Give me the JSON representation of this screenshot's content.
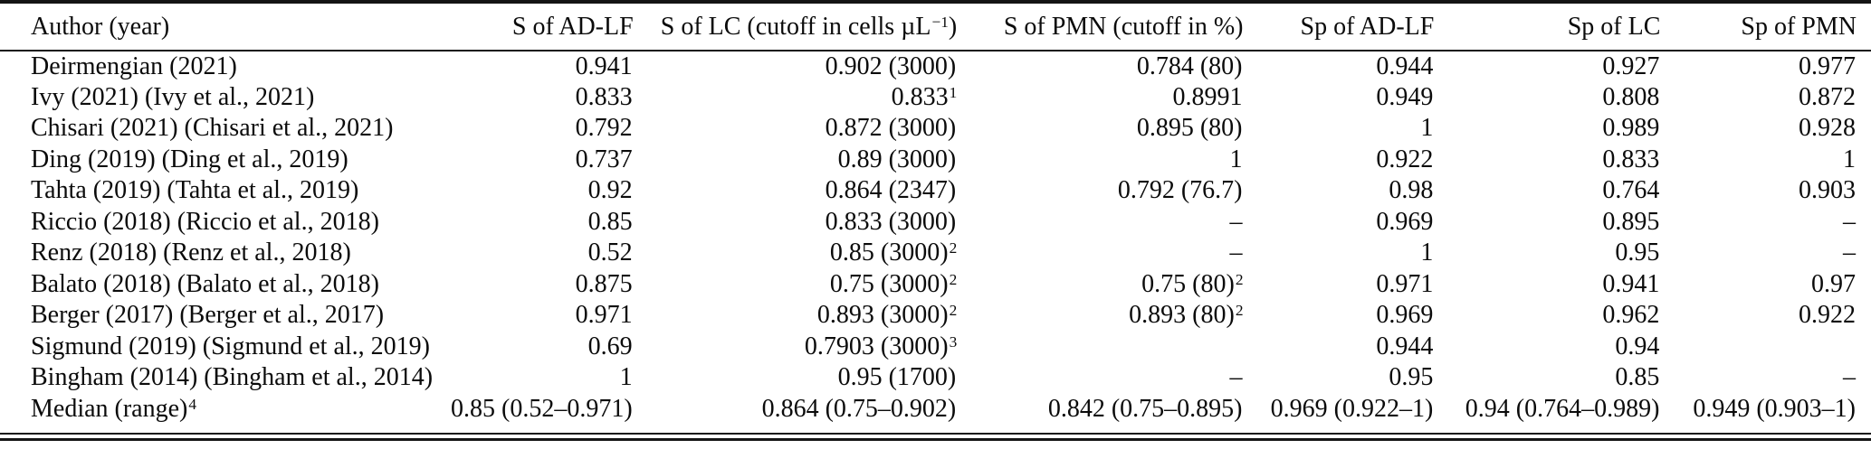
{
  "table": {
    "columns": [
      {
        "pre": "Author (year)",
        "sup": "",
        "post": ""
      },
      {
        "pre": "S of AD-LF",
        "sup": "",
        "post": ""
      },
      {
        "pre": "S of LC (cutoff in cells µL",
        "sup": "−1",
        "post": ")"
      },
      {
        "pre": "S of PMN (cutoff in %)",
        "sup": "",
        "post": ""
      },
      {
        "pre": "Sp of AD-LF",
        "sup": "",
        "post": ""
      },
      {
        "pre": "Sp of LC",
        "sup": "",
        "post": ""
      },
      {
        "pre": "Sp of PMN",
        "sup": "",
        "post": ""
      }
    ],
    "rows": [
      {
        "author": {
          "t": "Deirmengian (2021)",
          "s": ""
        },
        "c": [
          {
            "t": "0.941",
            "s": ""
          },
          {
            "t": "0.902 (3000)",
            "s": ""
          },
          {
            "t": "0.784 (80)",
            "s": ""
          },
          {
            "t": "0.944",
            "s": ""
          },
          {
            "t": "0.927",
            "s": ""
          },
          {
            "t": "0.977",
            "s": ""
          }
        ]
      },
      {
        "author": {
          "t": "Ivy (2021) (Ivy et al., 2021)",
          "s": ""
        },
        "c": [
          {
            "t": "0.833",
            "s": ""
          },
          {
            "t": "0.833",
            "s": "1"
          },
          {
            "t": "0.8991",
            "s": ""
          },
          {
            "t": "0.949",
            "s": ""
          },
          {
            "t": "0.808",
            "s": ""
          },
          {
            "t": "0.872",
            "s": ""
          }
        ]
      },
      {
        "author": {
          "t": "Chisari (2021) (Chisari et al., 2021)",
          "s": ""
        },
        "c": [
          {
            "t": "0.792",
            "s": ""
          },
          {
            "t": "0.872 (3000)",
            "s": ""
          },
          {
            "t": "0.895 (80)",
            "s": ""
          },
          {
            "t": "1",
            "s": ""
          },
          {
            "t": "0.989",
            "s": ""
          },
          {
            "t": "0.928",
            "s": ""
          }
        ]
      },
      {
        "author": {
          "t": "Ding (2019) (Ding et al., 2019)",
          "s": ""
        },
        "c": [
          {
            "t": "0.737",
            "s": ""
          },
          {
            "t": "0.89 (3000)",
            "s": ""
          },
          {
            "t": "1",
            "s": ""
          },
          {
            "t": "0.922",
            "s": ""
          },
          {
            "t": "0.833",
            "s": ""
          },
          {
            "t": "1",
            "s": ""
          }
        ]
      },
      {
        "author": {
          "t": "Tahta (2019) (Tahta et al., 2019)",
          "s": ""
        },
        "c": [
          {
            "t": "0.92",
            "s": ""
          },
          {
            "t": "0.864 (2347)",
            "s": ""
          },
          {
            "t": "0.792 (76.7)",
            "s": ""
          },
          {
            "t": "0.98",
            "s": ""
          },
          {
            "t": "0.764",
            "s": ""
          },
          {
            "t": "0.903",
            "s": ""
          }
        ]
      },
      {
        "author": {
          "t": "Riccio (2018) (Riccio et al., 2018)",
          "s": ""
        },
        "c": [
          {
            "t": "0.85",
            "s": ""
          },
          {
            "t": "0.833 (3000)",
            "s": ""
          },
          {
            "t": "–",
            "s": ""
          },
          {
            "t": "0.969",
            "s": ""
          },
          {
            "t": "0.895",
            "s": ""
          },
          {
            "t": "–",
            "s": ""
          }
        ]
      },
      {
        "author": {
          "t": "Renz (2018) (Renz et al., 2018)",
          "s": ""
        },
        "c": [
          {
            "t": "0.52",
            "s": ""
          },
          {
            "t": "0.85 (3000)",
            "s": "2"
          },
          {
            "t": "–",
            "s": ""
          },
          {
            "t": "1",
            "s": ""
          },
          {
            "t": "0.95",
            "s": ""
          },
          {
            "t": "–",
            "s": ""
          }
        ]
      },
      {
        "author": {
          "t": "Balato (2018) (Balato et al., 2018)",
          "s": ""
        },
        "c": [
          {
            "t": "0.875",
            "s": ""
          },
          {
            "t": "0.75 (3000)",
            "s": "2"
          },
          {
            "t": "0.75 (80)",
            "s": "2"
          },
          {
            "t": "0.971",
            "s": ""
          },
          {
            "t": "0.941",
            "s": ""
          },
          {
            "t": "0.97",
            "s": ""
          }
        ]
      },
      {
        "author": {
          "t": "Berger (2017) (Berger et al., 2017)",
          "s": ""
        },
        "c": [
          {
            "t": "0.971",
            "s": ""
          },
          {
            "t": "0.893 (3000)",
            "s": "2"
          },
          {
            "t": "0.893 (80)",
            "s": "2"
          },
          {
            "t": "0.969",
            "s": ""
          },
          {
            "t": "0.962",
            "s": ""
          },
          {
            "t": "0.922",
            "s": ""
          }
        ]
      },
      {
        "author": {
          "t": "Sigmund (2019) (Sigmund et al., 2019)",
          "s": ""
        },
        "c": [
          {
            "t": "0.69",
            "s": ""
          },
          {
            "t": "0.7903 (3000)",
            "s": "3"
          },
          {
            "t": "",
            "s": ""
          },
          {
            "t": "0.944",
            "s": ""
          },
          {
            "t": "0.94",
            "s": ""
          },
          {
            "t": "",
            "s": ""
          }
        ]
      },
      {
        "author": {
          "t": "Bingham (2014) (Bingham et al., 2014)",
          "s": ""
        },
        "c": [
          {
            "t": "1",
            "s": ""
          },
          {
            "t": "0.95 (1700)",
            "s": ""
          },
          {
            "t": "–",
            "s": ""
          },
          {
            "t": "0.95",
            "s": ""
          },
          {
            "t": "0.85",
            "s": ""
          },
          {
            "t": "–",
            "s": ""
          }
        ]
      },
      {
        "author": {
          "t": "Median (range)",
          "s": "4"
        },
        "c": [
          {
            "t": "0.85 (0.52–0.971)",
            "s": ""
          },
          {
            "t": "0.864 (0.75–0.902)",
            "s": ""
          },
          {
            "t": "0.842 (0.75–0.895)",
            "s": ""
          },
          {
            "t": "0.969 (0.922–1)",
            "s": ""
          },
          {
            "t": "0.94 (0.764–0.989)",
            "s": ""
          },
          {
            "t": "0.949 (0.903–1)",
            "s": ""
          }
        ]
      }
    ]
  }
}
